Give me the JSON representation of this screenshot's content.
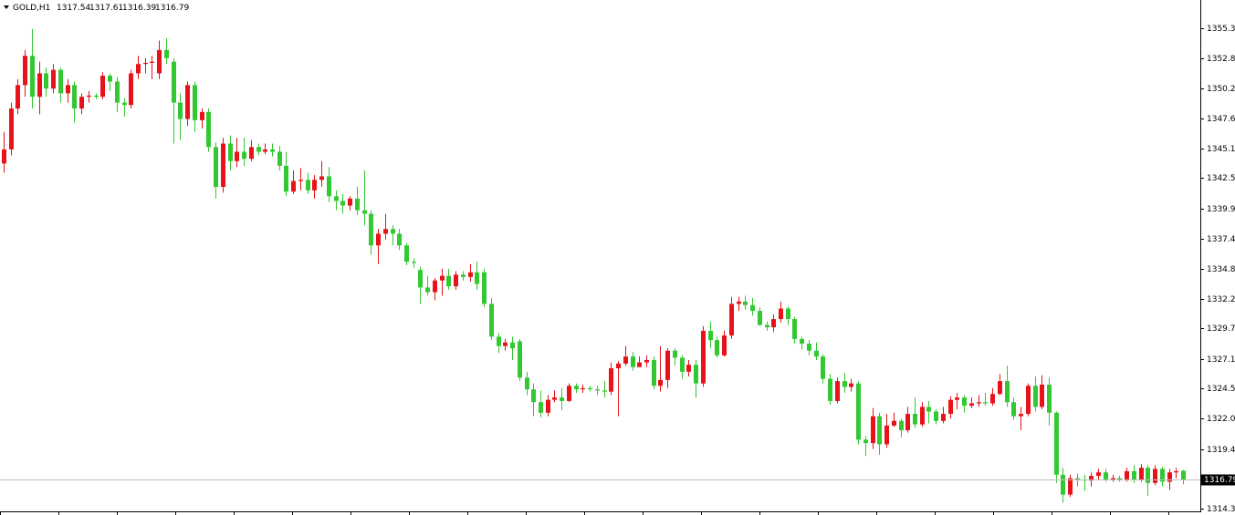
{
  "chart_data": {
    "type": "candlestick",
    "title": "GOLD,H1",
    "bull_color": "#e8121a",
    "bear_color": "#32c832",
    "price_line": true,
    "ylim": [
      1314.07,
      1357.77
    ],
    "yticks": [
      1355.35,
      {
        "value": 1352.8,
        "label": "1352.80"
      },
      1350.25,
      1347.65,
      {
        "value": 1345.1,
        "label": "1345.10"
      },
      1342.55,
      1339.95,
      {
        "value": 1337.4,
        "label": "1337.40"
      },
      {
        "value": 1334.8,
        "label": "1334.80"
      },
      1332.25,
      {
        "value": 1329.7,
        "label": "1329.70"
      },
      {
        "value": 1327.1,
        "label": "1327.10"
      },
      1324.55,
      {
        "value": 1322,
        "label": "1322.00"
      },
      {
        "value": 1319.4,
        "label": "1319.40"
      },
      {
        "value": 1314.3,
        "label": "1314.30"
      }
    ],
    "open": [
      1343.8,
      1345,
      1348.5,
      1350.5,
      1353,
      1349.5,
      1351.5,
      1350.2,
      1351.8,
      1349.8,
      1350.5,
      1348.5,
      1349.5,
      1349.6,
      1349.5,
      1351.3,
      1350.8,
      1349,
      1348.8,
      1351.5,
      1352.3,
      1352.4,
      1351.5,
      1353.5,
      1352.5,
      1349,
      1347.6,
      1350.5,
      1347.5,
      1348.2,
      1345.2,
      1341.8,
      1345.5,
      1344,
      1344.8,
      1344.2,
      1345.2,
      1344.8,
      1345,
      1344.8,
      1343.6,
      1341.4,
      1342.3,
      1342.4,
      1341.5,
      1342.4,
      1342.7,
      1341,
      1340.6,
      1340.2,
      1340.8,
      1339.8,
      1339.5,
      1336.8,
      1337.8,
      1338.2,
      1337.8,
      1336.8,
      1335.4,
      1334.7,
      1333.2,
      1332.8,
      1333.8,
      1334.2,
      1333.3,
      1334.3,
      1334.1,
      1334.5,
      1334.5,
      1331.8,
      1329,
      1328.2,
      1328.5,
      1328.6,
      1325.5,
      1324.5,
      1323.4,
      1322.5,
      1323.6,
      1323.8,
      1323.5,
      1324.8,
      1324.5,
      1324.6,
      1324.5,
      1324.4,
      1324.3,
      1326.3,
      1326.7,
      1327.3,
      1326.4,
      1326.8,
      1327,
      1324.8,
      1325.3,
      1327.8,
      1327.2,
      1326,
      1326.6,
      1325,
      1329.5,
      1328.7,
      1327.4,
      1329.1,
      1331.8,
      1332,
      1331.7,
      1331.2,
      1330,
      1329.8,
      1330.5,
      1331.4,
      1330.5,
      1328.8,
      1328.4,
      1327.8,
      1327.3,
      1325.4,
      1323.5,
      1325.2,
      1324.7,
      1325,
      1320.2,
      1319.9,
      1322.2,
      1319.8,
      1321.4,
      1321.8,
      1321,
      1322.4,
      1321.5,
      1323,
      1322.6,
      1321.8,
      1322.4,
      1323.6,
      1323.8,
      1323.1,
      1323.3,
      1323.4,
      1323.3,
      1324.1,
      1325.2,
      1323.4,
      1322.2,
      1322.4,
      1324.8,
      1323,
      1324.9,
      1322.5,
      1317.2,
      1315.5,
      1316.9,
      1316.8,
      1316.7,
      1317.1,
      1317.4,
      1316.8,
      1316.9,
      1316.8,
      1317.5,
      1316.8,
      1317.8,
      1316.5,
      1317.7,
      1316.6,
      1317.4,
      1317.54
    ],
    "high": [
      1346.5,
      1349,
      1351,
      1353.5,
      1355.3,
      1352.5,
      1352,
      1352.3,
      1352,
      1351,
      1350.8,
      1349.8,
      1350,
      1349.8,
      1351.6,
      1351.5,
      1351.2,
      1349.4,
      1351.8,
      1353,
      1352.8,
      1353,
      1354.3,
      1354.5,
      1352.8,
      1349.8,
      1350.8,
      1350.8,
      1348.5,
      1348.5,
      1345.6,
      1346,
      1346.2,
      1346,
      1346,
      1345.8,
      1345.5,
      1345.5,
      1345.5,
      1345.3,
      1344.8,
      1343.2,
      1343.4,
      1343,
      1342.8,
      1344,
      1343.5,
      1341.5,
      1341.2,
      1341,
      1341.8,
      1343.2,
      1339.8,
      1338.2,
      1339.5,
      1338.5,
      1338.2,
      1337,
      1335.7,
      1335,
      1334.2,
      1334,
      1334.8,
      1334.8,
      1334.6,
      1334.6,
      1335.2,
      1335.4,
      1334.8,
      1332.3,
      1329.3,
      1328.8,
      1329,
      1328.8,
      1326,
      1325,
      1324.4,
      1324,
      1324.4,
      1324.6,
      1325,
      1325,
      1324.9,
      1324.8,
      1324.8,
      1325.2,
      1326.8,
      1326.9,
      1328.2,
      1327.7,
      1327.3,
      1327.4,
      1327.3,
      1328.2,
      1328,
      1328,
      1327.4,
      1327,
      1327,
      1329.9,
      1330.3,
      1329,
      1329.5,
      1332.4,
      1332.4,
      1332.5,
      1332.3,
      1331.5,
      1330.3,
      1330.9,
      1332,
      1331.6,
      1330.7,
      1329,
      1328.7,
      1328.5,
      1327.5,
      1325.8,
      1325.5,
      1325.9,
      1325.4,
      1325.2,
      1320.5,
      1322.9,
      1322.5,
      1322.4,
      1322.5,
      1322,
      1323,
      1323.8,
      1323.4,
      1323.5,
      1322.8,
      1323,
      1323.9,
      1324.2,
      1324,
      1323.8,
      1324,
      1324.2,
      1324.6,
      1325.8,
      1326.5,
      1323.8,
      1323,
      1325,
      1325.6,
      1325.7,
      1325.5,
      1322.6,
      1317.8,
      1317.2,
      1317.3,
      1317.2,
      1317.4,
      1317.7,
      1317.7,
      1317.2,
      1317.1,
      1317.8,
      1318,
      1318.1,
      1318,
      1318,
      1317.9,
      1317.7,
      1317.8,
      1317.61
    ],
    "low": [
      1343,
      1344.5,
      1348,
      1349.5,
      1348.5,
      1348,
      1349.5,
      1349.8,
      1349,
      1349,
      1347.3,
      1348,
      1349,
      1349.3,
      1349.3,
      1350,
      1348.2,
      1347.8,
      1348.5,
      1351,
      1351.5,
      1351,
      1351,
      1352.3,
      1345.5,
      1345.8,
      1347,
      1346.5,
      1346.8,
      1344.8,
      1340.8,
      1341.3,
      1343.2,
      1343.5,
      1343.6,
      1344,
      1344.5,
      1344.6,
      1344.4,
      1343.2,
      1341,
      1341.2,
      1341.5,
      1341.2,
      1340.8,
      1341.8,
      1340.5,
      1339.8,
      1339.5,
      1339.8,
      1339.4,
      1338.5,
      1336,
      1335.2,
      1337.3,
      1336.8,
      1336.4,
      1335.1,
      1334.9,
      1331.8,
      1332.5,
      1332.1,
      1332.5,
      1333,
      1333,
      1333.8,
      1333.7,
      1333,
      1331.5,
      1328.7,
      1327.6,
      1327.8,
      1327,
      1325.2,
      1324,
      1322.2,
      1322.1,
      1322.2,
      1323.4,
      1322.7,
      1323.4,
      1324.2,
      1324.2,
      1324.3,
      1324,
      1323.8,
      1324,
      1322.2,
      1326.5,
      1326.1,
      1326.4,
      1326.4,
      1324.5,
      1324.3,
      1324.6,
      1326.5,
      1325.4,
      1325.6,
      1323.8,
      1324.7,
      1328,
      1327.2,
      1327.3,
      1328.8,
      1331.2,
      1331.3,
      1330.8,
      1329.9,
      1329.5,
      1329.4,
      1330.2,
      1330,
      1328.4,
      1327.9,
      1327.4,
      1327,
      1325,
      1323.2,
      1323.3,
      1324.2,
      1324.3,
      1319.8,
      1318.8,
      1319.4,
      1318.9,
      1319.5,
      1321.3,
      1320.4,
      1320.8,
      1321.2,
      1321.3,
      1321.6,
      1321.5,
      1321.6,
      1322,
      1322.8,
      1322.5,
      1322.9,
      1323,
      1323.1,
      1323.1,
      1324,
      1323,
      1321.9,
      1321,
      1322.2,
      1322.6,
      1322.8,
      1321.4,
      1316.5,
      1314.8,
      1315.3,
      1316.2,
      1315.8,
      1316.2,
      1316.7,
      1316.6,
      1316.6,
      1316.6,
      1316.6,
      1316.5,
      1316.6,
      1315.4,
      1316.3,
      1316.2,
      1315.9,
      1316.9,
      1316.39
    ],
    "close": [
      1345,
      1348.5,
      1350.5,
      1353,
      1349.5,
      1351.5,
      1350.2,
      1351.8,
      1349.8,
      1350.5,
      1348.5,
      1349.5,
      1349.6,
      1349.5,
      1351.3,
      1350.8,
      1349,
      1348.8,
      1351.5,
      1352.3,
      1352.4,
      1352.5,
      1353.5,
      1352.8,
      1349,
      1347.6,
      1350.5,
      1347.5,
      1348.2,
      1345.2,
      1341.8,
      1345.5,
      1344,
      1344.8,
      1344.2,
      1345.2,
      1344.8,
      1345,
      1344.8,
      1343.6,
      1341.4,
      1342.3,
      1342.4,
      1341.5,
      1342.4,
      1342.7,
      1341,
      1340.6,
      1340.2,
      1340.8,
      1339.8,
      1339.5,
      1336.8,
      1337.8,
      1338.2,
      1337.8,
      1336.8,
      1335.4,
      1335.3,
      1333.2,
      1332.8,
      1333.8,
      1334.2,
      1333.3,
      1334.3,
      1334.1,
      1334.5,
      1333.5,
      1331.8,
      1329,
      1328.2,
      1328.5,
      1328,
      1325.5,
      1324.5,
      1323.4,
      1322.5,
      1323.6,
      1323.8,
      1323.5,
      1324.8,
      1324.5,
      1324.6,
      1324.5,
      1324.4,
      1324.3,
      1326.3,
      1326.7,
      1327.3,
      1326.4,
      1326.8,
      1327,
      1324.8,
      1325.3,
      1327.8,
      1327.2,
      1326,
      1326.6,
      1325,
      1329.5,
      1328.7,
      1327.4,
      1329.1,
      1331.8,
      1332,
      1331.7,
      1331.2,
      1330,
      1329.8,
      1330.5,
      1331.4,
      1330.5,
      1328.8,
      1328.4,
      1327.8,
      1327.3,
      1325.4,
      1323.5,
      1325.2,
      1324.7,
      1325,
      1320.2,
      1319.9,
      1322.2,
      1319.8,
      1321.4,
      1321.8,
      1321,
      1322.4,
      1321.5,
      1323,
      1322.6,
      1321.8,
      1322.4,
      1323.6,
      1323.8,
      1323.1,
      1323.3,
      1323.4,
      1323.3,
      1324.1,
      1325.2,
      1323.4,
      1322.2,
      1322.4,
      1324.8,
      1323,
      1324.9,
      1322.5,
      1317.2,
      1315.5,
      1316.9,
      1316.8,
      1316.7,
      1317.1,
      1317.4,
      1316.8,
      1316.9,
      1316.8,
      1317.5,
      1316.8,
      1317.8,
      1316.5,
      1317.7,
      1316.6,
      1317.4,
      1317.5,
      1316.79
    ]
  }
}
